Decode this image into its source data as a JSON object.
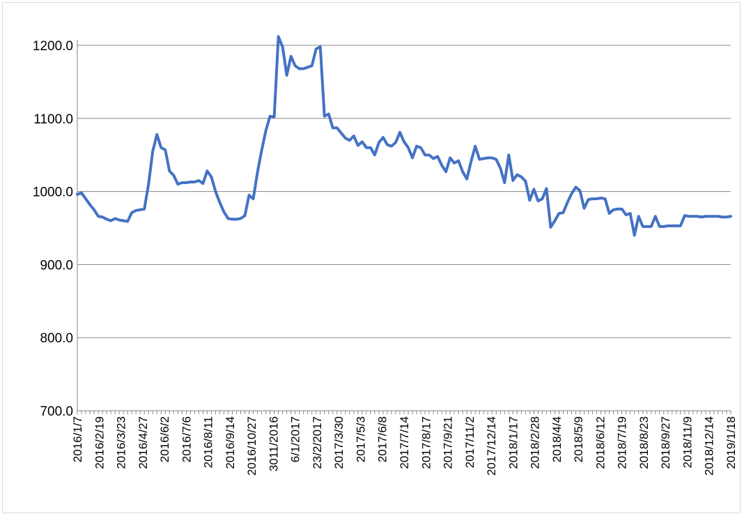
{
  "chart_data": {
    "type": "line",
    "title": "",
    "xlabel": "",
    "ylabel": "",
    "ylim": [
      700,
      1200
    ],
    "yticks": [
      "700.0",
      "800.0",
      "900.0",
      "1000.0",
      "1100.0",
      "1200.0"
    ],
    "ytick_values": [
      700,
      800,
      900,
      1000,
      1100,
      1200
    ],
    "grid": true,
    "legend": "none",
    "line_color": "#4472c4",
    "x_tick_labels": [
      "2016/1/7",
      "2016/2/19",
      "2016/3/23",
      "2016/4/27",
      "2016/6/2",
      "2016/7/6",
      "2016/8/11",
      "2016/9/14",
      "2016/10/27",
      "3011/2016",
      "6/1/2017",
      "23/2/2017",
      "2017/3/30",
      "2017/5/3",
      "2017/6/8",
      "2017/7/14",
      "2017/8/17",
      "2017/9/21",
      "2017/11/2",
      "2017/12/14",
      "2018/1/17",
      "2018/2/28",
      "2018/4/4",
      "2018/5/9",
      "2018/6/12",
      "2018/7/19",
      "2018/8/23",
      "2018/9/27",
      "2018/11/9",
      "2018/12/14",
      "2019/1/18"
    ],
    "series": [
      {
        "values": [
          996,
          998,
          990,
          982,
          975,
          966,
          965,
          962,
          960,
          963,
          961,
          960,
          959,
          971,
          974,
          975,
          976,
          1010,
          1055,
          1078,
          1060,
          1057,
          1028,
          1022,
          1010,
          1012,
          1012,
          1013,
          1013,
          1015,
          1011,
          1028,
          1020,
          1000,
          985,
          972,
          963,
          962,
          962,
          963,
          967,
          995,
          990,
          1026,
          1056,
          1083,
          1103,
          1102,
          1212,
          1198,
          1159,
          1185,
          1172,
          1168,
          1168,
          1170,
          1172,
          1195,
          1198,
          1103,
          1106,
          1087,
          1087,
          1080,
          1073,
          1070,
          1076,
          1063,
          1068,
          1060,
          1060,
          1050,
          1067,
          1074,
          1064,
          1062,
          1067,
          1081,
          1068,
          1060,
          1046,
          1062,
          1060,
          1050,
          1050,
          1045,
          1048,
          1036,
          1027,
          1046,
          1039,
          1042,
          1027,
          1017,
          1041,
          1062,
          1044,
          1045,
          1046,
          1046,
          1044,
          1032,
          1012,
          1050,
          1015,
          1023,
          1020,
          1014,
          988,
          1003,
          987,
          990,
          1004,
          951,
          960,
          970,
          971,
          985,
          997,
          1006,
          1001,
          977,
          989,
          990,
          990,
          991,
          990,
          970,
          975,
          976,
          976,
          968,
          970,
          940,
          966,
          952,
          952,
          952,
          966,
          952,
          952,
          953,
          953,
          953,
          953,
          967,
          966,
          966,
          966,
          965,
          966,
          966,
          966,
          966,
          965,
          965,
          966
        ]
      }
    ]
  }
}
